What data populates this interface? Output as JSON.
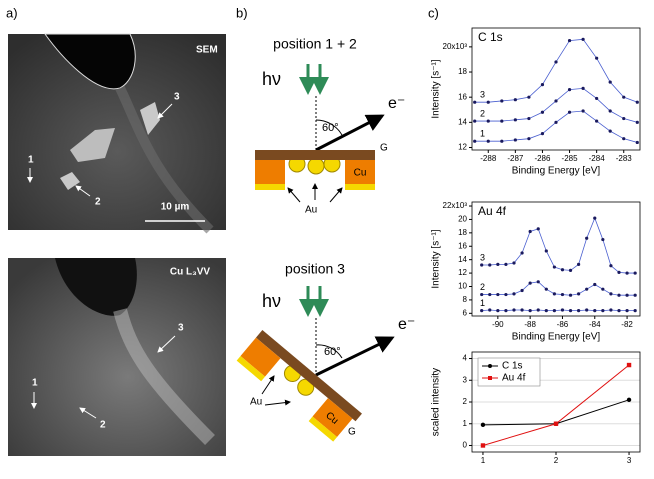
{
  "panels": {
    "a": {
      "label": "a)",
      "sem_image": {
        "caption": "SEM",
        "scale_bar": "10 µm",
        "markers": [
          "1",
          "2",
          "3"
        ]
      },
      "auger_image": {
        "caption": "Cu L₃VV",
        "markers": [
          "1",
          "2",
          "3"
        ]
      }
    },
    "b": {
      "label": "b)",
      "top": {
        "title": "position 1 + 2",
        "photon": "hν",
        "electron": "e⁻",
        "angle": "60°",
        "layer": "G",
        "metal": "Cu",
        "particles": "Au"
      },
      "bottom": {
        "title": "position 3",
        "photon": "hν",
        "electron": "e⁻",
        "angle": "60°",
        "layer": "G",
        "metal": "Cu",
        "particles": "Au"
      }
    },
    "c": {
      "label": "c)"
    }
  },
  "chart_data": [
    {
      "type": "line",
      "title": "C 1s",
      "x_label": "Binding Energy [eV]",
      "y_label": "Intensity [s⁻¹]",
      "x": [
        -288.5,
        -288,
        -287.5,
        -287,
        -286.5,
        -286,
        -285.5,
        -285,
        -284.5,
        -284,
        -283.5,
        -283,
        -282.5
      ],
      "series": [
        {
          "name": "1",
          "color": "#1a1a5e",
          "values": [
            12.5,
            12.5,
            12.5,
            12.6,
            12.7,
            13.1,
            14.0,
            14.8,
            14.9,
            14.1,
            13.3,
            12.7,
            12.4
          ]
        },
        {
          "name": "2",
          "color": "#1a1a5e",
          "values": [
            14.1,
            14.1,
            14.1,
            14.2,
            14.3,
            14.8,
            15.7,
            16.6,
            16.7,
            15.9,
            14.9,
            14.3,
            14.0
          ]
        },
        {
          "name": "3",
          "color": "#1a1a5e",
          "values": [
            15.6,
            15.6,
            15.7,
            15.8,
            16.0,
            17.0,
            18.8,
            20.5,
            20.6,
            19.1,
            17.2,
            16.0,
            15.6
          ]
        }
      ],
      "xlim": [
        -288.6,
        -282.4
      ],
      "xticks": [
        -288,
        -287,
        -286,
        -285,
        -284,
        -283
      ],
      "ylim": [
        11.8,
        21.5
      ],
      "yticks": [
        12,
        14,
        16,
        18,
        {
          "value": 20,
          "label": "20x10³"
        }
      ]
    },
    {
      "type": "line",
      "title": "Au 4f",
      "x_label": "Binding Energy [eV]",
      "y_label": "Intensity [s⁻¹]",
      "x": [
        -91,
        -90.5,
        -90,
        -89.5,
        -89,
        -88.5,
        -88,
        -87.5,
        -87,
        -86.5,
        -86,
        -85.5,
        -85,
        -84.5,
        -84,
        -83.5,
        -83,
        -82.5,
        -82,
        -81.5
      ],
      "series": [
        {
          "name": "1",
          "color": "#1a1a5e",
          "values": [
            6.4,
            6.5,
            6.4,
            6.4,
            6.5,
            6.5,
            6.4,
            6.5,
            6.4,
            6.4,
            6.5,
            6.4,
            6.4,
            6.5,
            6.4,
            6.4,
            6.5,
            6.4,
            6.4,
            6.4
          ]
        },
        {
          "name": "2",
          "color": "#1a1a5e",
          "values": [
            8.8,
            8.8,
            8.8,
            8.8,
            8.9,
            9.4,
            10.5,
            10.7,
            9.6,
            8.9,
            8.8,
            8.7,
            8.9,
            9.6,
            10.3,
            9.6,
            8.9,
            8.7,
            8.7,
            8.7
          ]
        },
        {
          "name": "3",
          "color": "#1a1a5e",
          "values": [
            13.2,
            13.2,
            13.3,
            13.3,
            13.5,
            15.0,
            18.2,
            18.6,
            15.3,
            12.9,
            12.5,
            12.4,
            13.3,
            17.2,
            20.2,
            17.0,
            13.1,
            12.1,
            12.0,
            12.0
          ]
        }
      ],
      "xlim": [
        -91.6,
        -81.2
      ],
      "xticks": [
        -90,
        -88,
        -86,
        -84,
        -82
      ],
      "ylim": [
        5.6,
        22.6
      ],
      "yticks": [
        6,
        8,
        10,
        12,
        14,
        16,
        18,
        20,
        {
          "value": 22,
          "label": "22x10³"
        }
      ]
    },
    {
      "type": "line",
      "y_label": "scaled intensity",
      "x": [
        1,
        2,
        3
      ],
      "series": [
        {
          "name": "C 1s",
          "color": "#000000",
          "marker": "circle",
          "values": [
            0.95,
            1,
            2.1
          ]
        },
        {
          "name": "Au 4f",
          "color": "#e01010",
          "marker": "square",
          "values": [
            0,
            1,
            3.7
          ]
        }
      ],
      "xlim": [
        0.85,
        3.15
      ],
      "xticks": [
        1,
        2,
        3
      ],
      "ylim": [
        -0.3,
        4.3
      ],
      "yticks": [
        0,
        1,
        2,
        3,
        4
      ],
      "grid": true,
      "legend": "upper left"
    }
  ]
}
